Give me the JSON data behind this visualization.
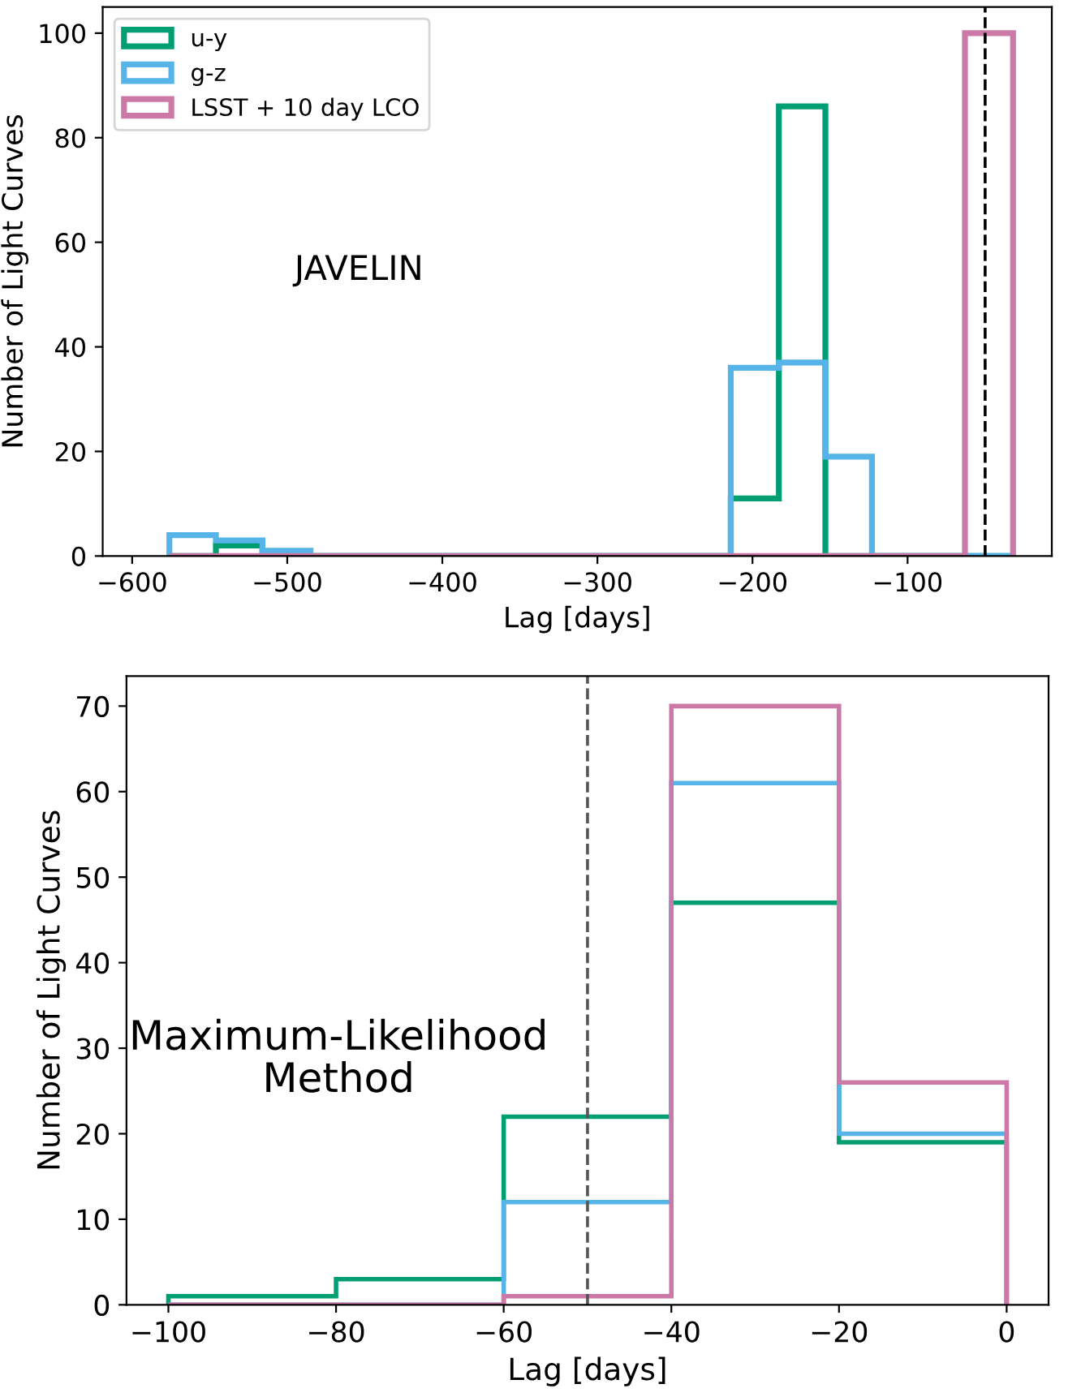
{
  "chart_data": [
    {
      "type": "histogram",
      "xlabel": "Lag [days]",
      "ylabel": "Number of Light Curves",
      "annotations": [
        "JAVELIN"
      ],
      "bins": [
        -576,
        -546,
        -516,
        -485,
        -455,
        -425,
        -395,
        -365,
        -334,
        -304,
        -274,
        -244,
        -214,
        -183,
        -153,
        -123,
        -93,
        -63,
        -32
      ],
      "series": [
        {
          "name": "u-y",
          "color": "#009e73",
          "values": [
            0,
            2,
            0,
            0,
            0,
            0,
            0,
            0,
            0,
            0,
            0,
            0,
            11,
            86,
            0,
            0,
            0,
            0
          ]
        },
        {
          "name": "g-z",
          "color": "#56b4e9",
          "values": [
            4,
            3,
            1,
            0,
            0,
            0,
            0,
            0,
            0,
            0,
            0,
            0,
            36,
            37,
            19,
            0,
            0,
            0
          ]
        },
        {
          "name": "LSST + 10 day LCO",
          "color": "#cc79a7",
          "values": [
            0,
            0,
            0,
            0,
            0,
            0,
            0,
            0,
            0,
            0,
            0,
            0,
            0,
            0,
            0,
            0,
            0,
            100
          ]
        }
      ],
      "xlim": [
        -619,
        -7
      ],
      "xticks": [
        -600,
        -500,
        -400,
        -300,
        -200,
        -100
      ],
      "ylim": [
        0,
        105
      ],
      "yticks": [
        0,
        20,
        40,
        60,
        80,
        100
      ],
      "ref_lines": [
        {
          "axis": "x",
          "value": -50,
          "color": "#000000",
          "line_style": "dashed"
        }
      ],
      "legend": "top left",
      "grid": false
    },
    {
      "type": "histogram",
      "xlabel": "Lag [days]",
      "ylabel": "Number of Light Curves",
      "annotations": [
        "Maximum-Likelihood\nMethod"
      ],
      "bins": [
        -100,
        -80,
        -60,
        -40,
        -20,
        0
      ],
      "series": [
        {
          "color": "#009e73",
          "values": [
            1,
            3,
            22,
            47,
            19
          ]
        },
        {
          "color": "#56b4e9",
          "values": [
            0,
            0,
            12,
            61,
            20
          ]
        },
        {
          "color": "#cc79a7",
          "values": [
            0,
            0,
            1,
            70,
            26
          ]
        }
      ],
      "xlim": [
        -105,
        5
      ],
      "xticks": [
        -100,
        -80,
        -60,
        -40,
        -20,
        0
      ],
      "ylim": [
        0,
        73.5
      ],
      "yticks": [
        0,
        10,
        20,
        30,
        40,
        50,
        60,
        70
      ],
      "ref_lines": [
        {
          "axis": "x",
          "value": -50,
          "color": "#555555",
          "line_style": "dashed"
        }
      ],
      "grid": false
    }
  ]
}
